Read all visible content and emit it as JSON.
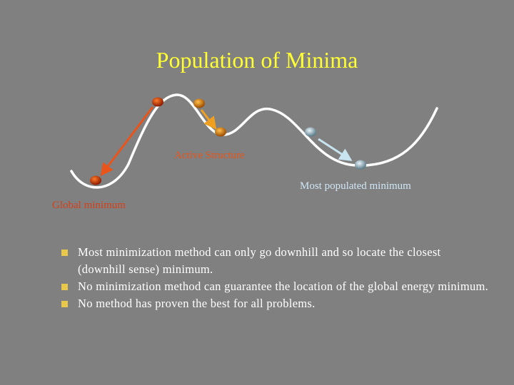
{
  "slide": {
    "title": "Population of Minima",
    "labels": {
      "active_structure": "Active Structure",
      "most_populated": "Most populated minimum",
      "global_minimum": "Global minimum"
    },
    "bullets": [
      "Most minimization method can only go downhill and so locate the closest (downhill sense) minimum.",
      "No minimization method can guarantee the location of the global energy minimum.",
      "No method has proven the best for all problems."
    ]
  },
  "colors": {
    "background": "#808080",
    "title": "#ffff33",
    "curve": "#ffffff",
    "active_label": "#e8541a",
    "most_populated_label": "#cfe6f5",
    "global_label": "#d2401a",
    "bullet": "#e8c84a"
  }
}
